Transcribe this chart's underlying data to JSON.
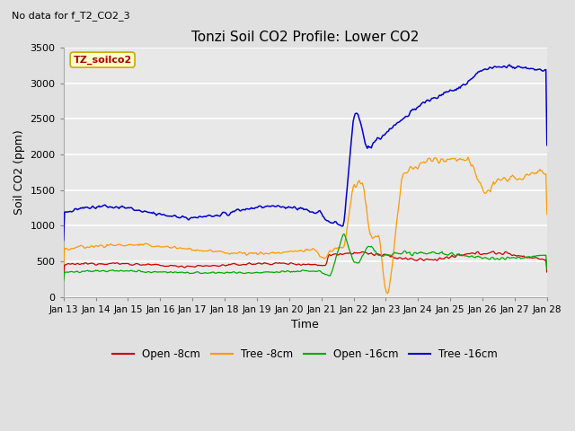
{
  "title": "Tonzi Soil CO2 Profile: Lower CO2",
  "subtitle": "No data for f_T2_CO2_3",
  "xlabel": "Time",
  "ylabel": "Soil CO2 (ppm)",
  "ylim": [
    0,
    3500
  ],
  "yticks": [
    0,
    500,
    1000,
    1500,
    2000,
    2500,
    3000,
    3500
  ],
  "xtick_labels": [
    "Jan 13",
    "Jan 14",
    "Jan 15",
    "Jan 16",
    "Jan 17",
    "Jan 18",
    "Jan 19",
    "Jan 20",
    "Jan 21",
    "Jan 22",
    "Jan 23",
    "Jan 24",
    "Jan 25",
    "Jan 26",
    "Jan 27",
    "Jan 28"
  ],
  "legend_label": "TZ_soilco2",
  "legend_entries": [
    "Open -8cm",
    "Tree -8cm",
    "Open -16cm",
    "Tree -16cm"
  ],
  "legend_colors": [
    "#cc0000",
    "#ff9900",
    "#00aa00",
    "#0000cc"
  ],
  "plot_bg_color": "#e8e8e8",
  "colors": {
    "open8": "#cc0000",
    "tree8": "#ff9900",
    "open16": "#00aa00",
    "tree16": "#0000cc"
  },
  "n_points": 480
}
